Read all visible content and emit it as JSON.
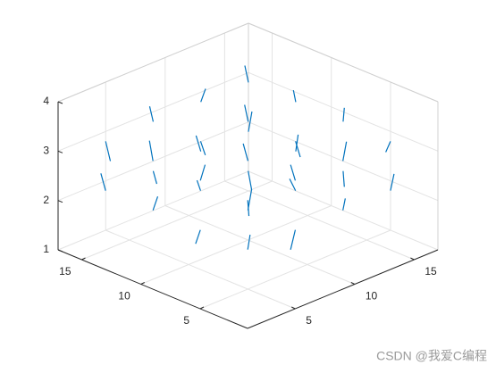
{
  "chart_data": {
    "type": "quiver3",
    "x": [
      4,
      8,
      12,
      16,
      4,
      8,
      12,
      16,
      4,
      8,
      12,
      16,
      4,
      8,
      12,
      16,
      4,
      8,
      12,
      16,
      4,
      8,
      12,
      16,
      4,
      8,
      12,
      16,
      4,
      8,
      12,
      16
    ],
    "y": [
      4,
      4,
      4,
      4,
      8,
      8,
      8,
      8,
      12,
      12,
      12,
      12,
      16,
      16,
      16,
      16,
      4,
      4,
      4,
      4,
      8,
      8,
      8,
      8,
      12,
      12,
      12,
      12,
      16,
      16,
      16,
      16
    ],
    "z": [
      2,
      2,
      2,
      2,
      2,
      2,
      2,
      2,
      2,
      2,
      2,
      2,
      2,
      2,
      2,
      2,
      3,
      3,
      3,
      3,
      3,
      3,
      3,
      3,
      3,
      3,
      3,
      3,
      3,
      3,
      3,
      3
    ],
    "u": [
      0.1,
      -0.2,
      0.3,
      0.1,
      -0.1,
      0.2,
      -0.3,
      0.2,
      0.1,
      -0.1,
      0.2,
      0.3,
      -0.2,
      0.1,
      -0.1,
      0.2,
      0.2,
      -0.1,
      0.1,
      -0.3,
      0.3,
      -0.2,
      0.1,
      0.2,
      -0.1,
      0.3,
      -0.2,
      0.1,
      0.2,
      -0.1,
      0.3,
      -0.2
    ],
    "v": [
      -0.1,
      0.2,
      0.1,
      -0.2,
      0.3,
      -0.1,
      0.2,
      0.1,
      -0.3,
      0.2,
      -0.1,
      0.1,
      0.2,
      -0.2,
      0.3,
      -0.1,
      0.1,
      0.3,
      -0.2,
      0.1,
      -0.1,
      0.2,
      -0.3,
      0.1,
      0.2,
      -0.1,
      0.1,
      0.3,
      -0.2,
      0.2,
      -0.1,
      0.1
    ],
    "w": [
      0.3,
      -0.4,
      0.2,
      0.35,
      -0.3,
      0.4,
      0.25,
      -0.35,
      0.3,
      0.2,
      -0.4,
      0.3,
      0.35,
      -0.25,
      0.3,
      0.4,
      -0.35,
      0.3,
      0.4,
      -0.2,
      0.3,
      0.35,
      -0.3,
      0.25,
      0.4,
      -0.3,
      0.35,
      0.2,
      -0.4,
      0.3,
      0.25,
      0.35
    ],
    "color": "#0072bd",
    "xlim": [
      1,
      17
    ],
    "ylim": [
      1,
      17
    ],
    "zlim": [
      1,
      4
    ],
    "xticks": [
      5,
      10,
      15
    ],
    "yticks": [
      5,
      10,
      15
    ],
    "zticks": [
      1,
      2,
      3,
      4
    ],
    "grid": true,
    "watermark": "CSDN @我爱C编程"
  }
}
